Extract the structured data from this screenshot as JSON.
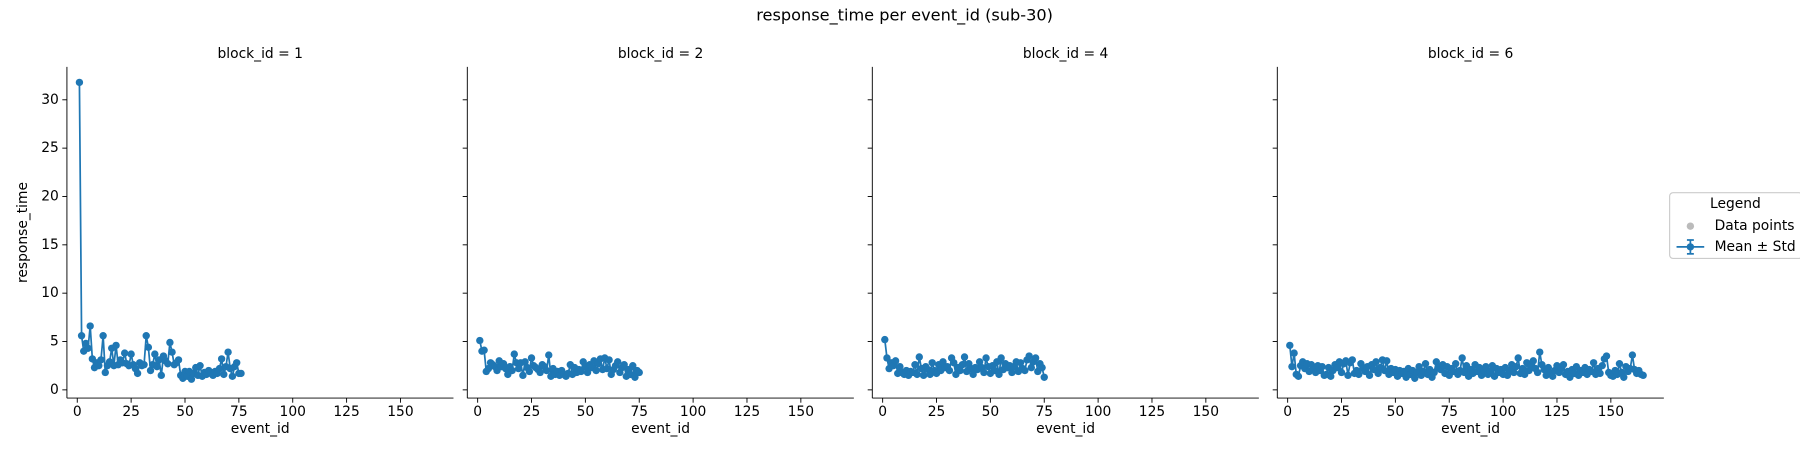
{
  "title": "response_time per event_id (sub-30)",
  "legend": {
    "title": "Legend",
    "entries": [
      {
        "label": "Data points",
        "color": "#bbbbbb"
      },
      {
        "label": "Mean ± Std",
        "color": "#1f77b4"
      }
    ]
  },
  "chart_data": [
    {
      "type": "line",
      "title": "block_id = 1",
      "x_label": "event_id",
      "y_label": "response_time",
      "color": "#1f77b4",
      "xlim": [
        -4.8,
        174.6
      ],
      "ylim": [
        -0.85,
        33.4
      ],
      "xticks": [
        0,
        25,
        50,
        75,
        100,
        125,
        150
      ],
      "yticks": [
        0,
        5,
        10,
        15,
        20,
        25,
        30
      ],
      "x": [
        1,
        2,
        3,
        4,
        5,
        6,
        7,
        8,
        9,
        10,
        11,
        12,
        13,
        14,
        15,
        16,
        17,
        18,
        19,
        20,
        21,
        22,
        23,
        24,
        25,
        26,
        27,
        28,
        29,
        30,
        31,
        32,
        33,
        34,
        35,
        36,
        37,
        38,
        39,
        40,
        41,
        42,
        43,
        44,
        45,
        46,
        47,
        48,
        49,
        50,
        51,
        52,
        53,
        54,
        55,
        56,
        57,
        58,
        59,
        60,
        61,
        62,
        63,
        64,
        65,
        66,
        67,
        68,
        69,
        70,
        71,
        72,
        73,
        74,
        75,
        76
      ],
      "values": [
        31.8,
        5.6,
        4.0,
        4.8,
        4.3,
        6.6,
        3.2,
        2.3,
        2.8,
        2.5,
        3.1,
        5.6,
        1.8,
        2.5,
        2.9,
        4.3,
        2.5,
        4.6,
        2.6,
        3.1,
        2.8,
        3.8,
        2.7,
        2.5,
        3.7,
        2.6,
        2.2,
        1.7,
        2.8,
        2.5,
        2.6,
        5.6,
        4.4,
        2.0,
        2.6,
        3.7,
        2.4,
        3.1,
        1.5,
        3.5,
        3.0,
        2.7,
        4.9,
        3.9,
        2.6,
        2.8,
        3.1,
        1.5,
        1.2,
        1.9,
        1.4,
        1.9,
        1.1,
        1.7,
        2.3,
        1.5,
        2.5,
        1.4,
        1.8,
        1.6,
        2.0,
        1.8,
        1.5,
        1.9,
        1.7,
        2.2,
        3.2,
        1.6,
        2.4,
        3.9,
        2.2,
        1.4,
        2.4,
        2.8,
        1.7,
        1.7
      ]
    },
    {
      "type": "line",
      "title": "block_id = 2",
      "x_label": "event_id",
      "color": "#1f77b4",
      "xlim": [
        -4.8,
        174.6
      ],
      "ylim": [
        -0.85,
        33.4
      ],
      "xticks": [
        0,
        25,
        50,
        75,
        100,
        125,
        150
      ],
      "yticks": [
        0,
        5,
        10,
        15,
        20,
        25,
        30
      ],
      "x": [
        1,
        2,
        3,
        4,
        5,
        6,
        7,
        8,
        9,
        10,
        11,
        12,
        13,
        14,
        15,
        16,
        17,
        18,
        19,
        20,
        21,
        22,
        23,
        24,
        25,
        26,
        27,
        28,
        29,
        30,
        31,
        32,
        33,
        34,
        35,
        36,
        37,
        38,
        39,
        40,
        41,
        42,
        43,
        44,
        45,
        46,
        47,
        48,
        49,
        50,
        51,
        52,
        53,
        54,
        55,
        56,
        57,
        58,
        59,
        60,
        61,
        62,
        63,
        64,
        65,
        66,
        67,
        68,
        69,
        70,
        71,
        72,
        73,
        74,
        75
      ],
      "values": [
        5.1,
        4.0,
        4.1,
        1.9,
        2.2,
        2.8,
        2.6,
        2.4,
        2.0,
        3.0,
        2.4,
        2.7,
        2.2,
        1.6,
        2.4,
        2.0,
        3.7,
        2.8,
        2.2,
        2.8,
        1.5,
        2.9,
        2.3,
        1.9,
        3.3,
        2.5,
        2.3,
        2.1,
        1.8,
        2.6,
        2.4,
        2.0,
        3.6,
        1.4,
        2.2,
        1.6,
        1.9,
        1.5,
        2.0,
        1.6,
        1.4,
        1.7,
        2.6,
        1.6,
        2.3,
        1.8,
        2.1,
        1.9,
        2.9,
        2.4,
        1.8,
        2.6,
        2.3,
        3.0,
        2.0,
        2.7,
        3.2,
        2.1,
        3.3,
        2.2,
        3.1,
        1.6,
        2.1,
        2.5,
        2.9,
        1.8,
        2.3,
        2.6,
        1.4,
        2.1,
        1.6,
        2.5,
        1.3,
        2.0,
        1.8
      ]
    },
    {
      "type": "line",
      "title": "block_id = 4",
      "x_label": "event_id",
      "color": "#1f77b4",
      "xlim": [
        -4.8,
        174.6
      ],
      "ylim": [
        -0.85,
        33.4
      ],
      "xticks": [
        0,
        25,
        50,
        75,
        100,
        125,
        150
      ],
      "yticks": [
        0,
        5,
        10,
        15,
        20,
        25,
        30
      ],
      "x": [
        1,
        2,
        3,
        4,
        5,
        6,
        7,
        8,
        9,
        10,
        11,
        12,
        13,
        14,
        15,
        16,
        17,
        18,
        19,
        20,
        21,
        22,
        23,
        24,
        25,
        26,
        27,
        28,
        29,
        30,
        31,
        32,
        33,
        34,
        35,
        36,
        37,
        38,
        39,
        40,
        41,
        42,
        43,
        44,
        45,
        46,
        47,
        48,
        49,
        50,
        51,
        52,
        53,
        54,
        55,
        56,
        57,
        58,
        59,
        60,
        61,
        62,
        63,
        64,
        65,
        66,
        67,
        68,
        69,
        70,
        71,
        72,
        73,
        74,
        75
      ],
      "values": [
        5.2,
        3.3,
        2.2,
        2.8,
        2.5,
        3.0,
        1.7,
        2.4,
        1.8,
        1.6,
        2.0,
        1.5,
        1.9,
        1.8,
        2.6,
        1.6,
        3.4,
        2.2,
        1.5,
        2.4,
        2.1,
        1.6,
        2.8,
        2.0,
        1.7,
        2.6,
        2.0,
        2.9,
        2.3,
        2.4,
        2.0,
        3.3,
        2.8,
        1.6,
        2.3,
        2.0,
        2.6,
        3.4,
        1.9,
        2.7,
        2.2,
        1.6,
        2.3,
        2.1,
        2.9,
        2.3,
        1.8,
        3.3,
        2.4,
        1.7,
        2.5,
        2.0,
        2.9,
        1.6,
        3.3,
        2.1,
        2.7,
        2.3,
        2.5,
        1.8,
        2.4,
        2.9,
        1.9,
        2.8,
        2.2,
        2.0,
        3.1,
        3.5,
        2.3,
        2.9,
        3.3,
        1.9,
        2.7,
        2.3,
        1.3
      ]
    },
    {
      "type": "line",
      "title": "block_id = 6",
      "x_label": "event_id",
      "color": "#1f77b4",
      "xlim": [
        -4.8,
        174.6
      ],
      "ylim": [
        -0.85,
        33.4
      ],
      "xticks": [
        0,
        25,
        50,
        75,
        100,
        125,
        150
      ],
      "yticks": [
        0,
        5,
        10,
        15,
        20,
        25,
        30
      ],
      "x": [
        1,
        2,
        3,
        4,
        5,
        6,
        7,
        8,
        9,
        10,
        11,
        12,
        13,
        14,
        15,
        16,
        17,
        18,
        19,
        20,
        21,
        22,
        23,
        24,
        25,
        26,
        27,
        28,
        29,
        30,
        31,
        32,
        33,
        34,
        35,
        36,
        37,
        38,
        39,
        40,
        41,
        42,
        43,
        44,
        45,
        46,
        47,
        48,
        49,
        50,
        51,
        52,
        53,
        54,
        55,
        56,
        57,
        58,
        59,
        60,
        61,
        62,
        63,
        64,
        65,
        66,
        67,
        68,
        69,
        70,
        71,
        72,
        73,
        74,
        75,
        76,
        77,
        78,
        79,
        80,
        81,
        82,
        83,
        84,
        85,
        86,
        87,
        88,
        89,
        90,
        91,
        92,
        93,
        94,
        95,
        96,
        97,
        98,
        99,
        100,
        101,
        102,
        103,
        104,
        105,
        106,
        107,
        108,
        109,
        110,
        111,
        112,
        113,
        114,
        115,
        116,
        117,
        118,
        119,
        120,
        121,
        122,
        123,
        124,
        125,
        126,
        127,
        128,
        129,
        130,
        131,
        132,
        133,
        134,
        135,
        136,
        137,
        138,
        139,
        140,
        141,
        142,
        143,
        144,
        145,
        146,
        147,
        148,
        149,
        150,
        151,
        152,
        153,
        154,
        155,
        156,
        157,
        158,
        159,
        160,
        161,
        162,
        163,
        164,
        165
      ],
      "values": [
        4.6,
        2.4,
        3.8,
        1.6,
        1.4,
        2.5,
        2.9,
        2.2,
        2.7,
        1.9,
        2.6,
        2.1,
        1.8,
        2.5,
        2.0,
        2.4,
        1.5,
        1.6,
        2.3,
        1.4,
        2.0,
        2.6,
        2.3,
        2.9,
        1.8,
        2.7,
        3.0,
        1.5,
        2.8,
        3.1,
        1.7,
        2.0,
        1.6,
        2.7,
        2.2,
        1.9,
        2.4,
        1.5,
        2.6,
        2.1,
        2.9,
        1.7,
        2.3,
        3.1,
        2.0,
        3.0,
        1.6,
        2.2,
        1.8,
        2.1,
        1.4,
        2.0,
        1.7,
        1.9,
        1.3,
        2.2,
        1.6,
        2.0,
        1.2,
        1.8,
        2.4,
        1.5,
        1.9,
        2.7,
        1.6,
        2.1,
        1.3,
        1.8,
        2.9,
        2.3,
        2.1,
        2.6,
        1.7,
        2.4,
        1.5,
        2.2,
        1.9,
        2.7,
        1.6,
        2.0,
        3.3,
        1.8,
        2.5,
        1.4,
        2.1,
        1.7,
        2.6,
        1.9,
        2.3,
        1.5,
        2.0,
        2.4,
        1.6,
        1.9,
        2.5,
        1.4,
        2.2,
        1.8,
        2.1,
        1.6,
        2.3,
        1.5,
        2.0,
        2.6,
        1.8,
        2.4,
        3.3,
        1.7,
        2.2,
        1.6,
        2.8,
        2.0,
        2.5,
        3.0,
        2.2,
        1.8,
        3.9,
        2.6,
        2.1,
        1.5,
        2.3,
        1.7,
        1.4,
        2.0,
        2.5,
        1.8,
        2.2,
        2.6,
        1.6,
        1.9,
        1.3,
        2.1,
        1.7,
        2.4,
        1.5,
        2.0,
        1.8,
        2.3,
        1.6,
        2.1,
        1.9,
        2.8,
        1.6,
        2.2,
        1.7,
        2.5,
        3.2,
        3.5,
        1.8,
        1.5,
        1.4,
        2.0,
        1.6,
        2.7,
        1.8,
        1.3,
        2.4,
        1.9,
        2.2,
        3.6,
        2.1,
        1.7,
        2.0,
        1.6,
        1.5
      ]
    }
  ]
}
